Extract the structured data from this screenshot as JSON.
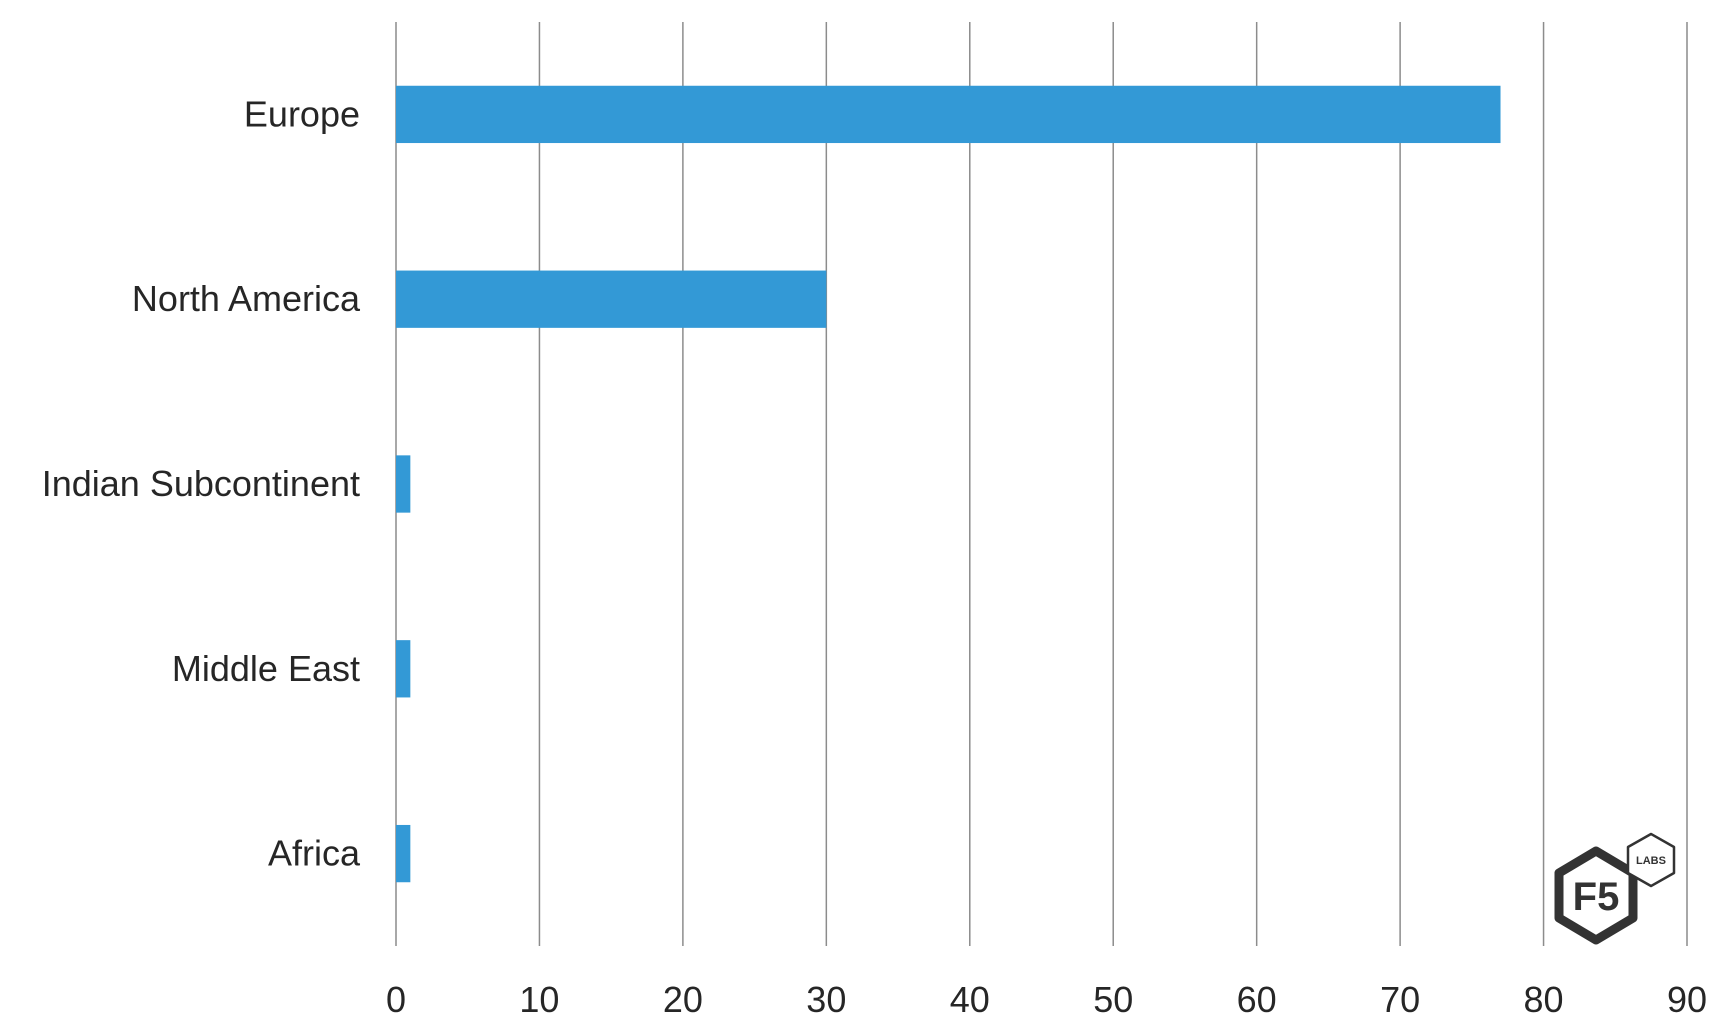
{
  "chart_data": {
    "type": "bar",
    "orientation": "horizontal",
    "categories": [
      "Europe",
      "North America",
      "Indian Subcontinent",
      "Middle East",
      "Africa"
    ],
    "values": [
      77,
      30,
      1,
      1,
      1
    ],
    "xlim": [
      0,
      90
    ],
    "xticks": [
      "0",
      "10",
      "20",
      "30",
      "40",
      "50",
      "60",
      "70",
      "80",
      "90"
    ],
    "grid": "vertical",
    "bar_color": "#3399d6",
    "title": "",
    "xlabel": "",
    "ylabel": ""
  },
  "logo": {
    "brand": "F5",
    "sub": "LABS",
    "color": "#333333"
  }
}
